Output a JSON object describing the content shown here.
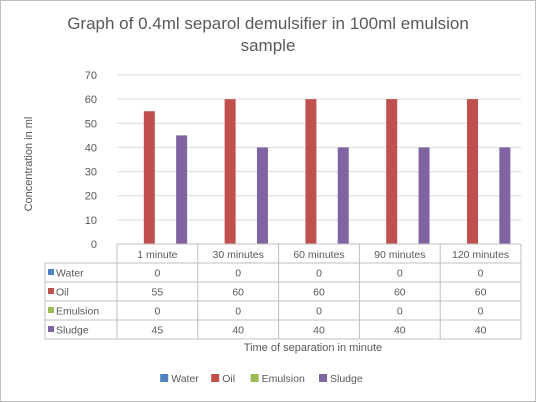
{
  "chart_data": {
    "type": "bar",
    "title": "Graph of 0.4ml separol demulsifier in 100ml emulsion sample",
    "title_lines": [
      "Graph of 0.4ml separol demulsifier in 100ml emulsion",
      "sample"
    ],
    "xlabel": "Time of separation in minute",
    "ylabel": "Concentration in ml",
    "ylim": [
      0,
      70
    ],
    "yticks": [
      "0",
      "10",
      "20",
      "30",
      "40",
      "50",
      "60",
      "70"
    ],
    "categories": [
      "1 minute",
      "30 minutes",
      "60 minutes",
      "90 minutes",
      "120 minutes"
    ],
    "series": [
      {
        "name": "Water",
        "color": "#4f81bd",
        "values": [
          0,
          0,
          0,
          0,
          0
        ]
      },
      {
        "name": "Oil",
        "color": "#c0504d",
        "values": [
          55,
          60,
          60,
          60,
          60
        ]
      },
      {
        "name": "Emulsion",
        "color": "#9bbb59",
        "values": [
          0,
          0,
          0,
          0,
          0
        ]
      },
      {
        "name": "Sludge",
        "color": "#8064a2",
        "values": [
          45,
          40,
          40,
          40,
          40
        ]
      }
    ],
    "grid": true,
    "legend_position": "bottom",
    "data_table": true
  }
}
